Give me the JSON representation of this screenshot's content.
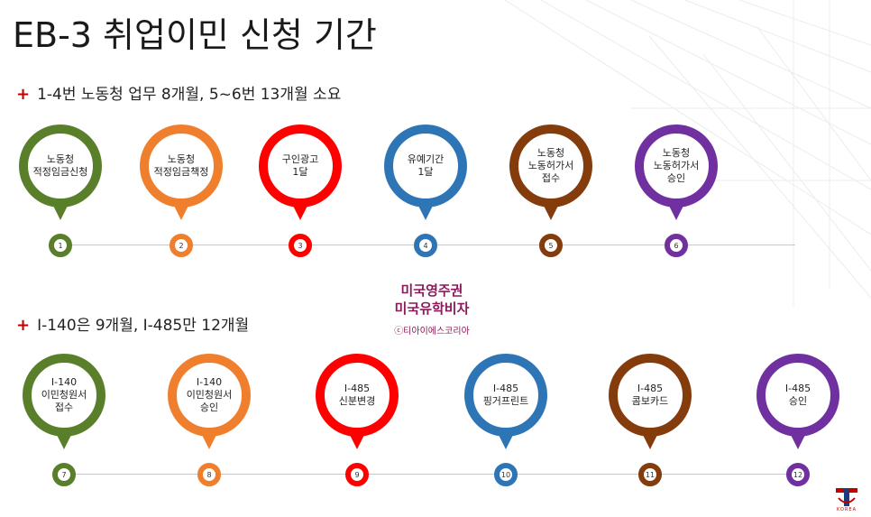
{
  "title": "EB-3 취업이민 신청 기간",
  "sections": [
    {
      "header": "1-4번 노동청 업무 8개월, 5~6번 13개월 소요"
    },
    {
      "header": "I-140은 9개월, I-485만 12개월"
    }
  ],
  "steps": [
    {
      "label": "노동청\n적정임금신청",
      "number": "1",
      "color": "#5a7f2b"
    },
    {
      "label": "노동청\n적정임금책정",
      "number": "2",
      "color": "#ef7f2d"
    },
    {
      "label": "구인광고\n1달",
      "number": "3",
      "color": "#ff0000"
    },
    {
      "label": "유예기간\n1달",
      "number": "4",
      "color": "#2e75b6"
    },
    {
      "label": "노동청\n노동허가서\n접수",
      "number": "5",
      "color": "#843c0c"
    },
    {
      "label": "노동청\n노동허가서\n승인",
      "number": "6",
      "color": "#7030a0"
    },
    {
      "label": "I-140\n이민청원서\n접수",
      "number": "7",
      "color": "#5a7f2b"
    },
    {
      "label": "I-140\n이민청원서\n승인",
      "number": "8",
      "color": "#ef7f2d"
    },
    {
      "label": "I-485\n신분변경",
      "number": "9",
      "color": "#ff0000"
    },
    {
      "label": "I-485\n핑거프린트",
      "number": "10",
      "color": "#2e75b6"
    },
    {
      "label": "I-485\n콤보카드",
      "number": "11",
      "color": "#843c0c"
    },
    {
      "label": "I-485\n승인",
      "number": "12",
      "color": "#7030a0"
    }
  ],
  "watermark": {
    "line1": "미국영주권",
    "line2": "미국유학비자",
    "line3": "ⓒ티아이에스코리아"
  },
  "logo": {
    "text": "KOREA",
    "icon": "tis-logo-icon"
  }
}
